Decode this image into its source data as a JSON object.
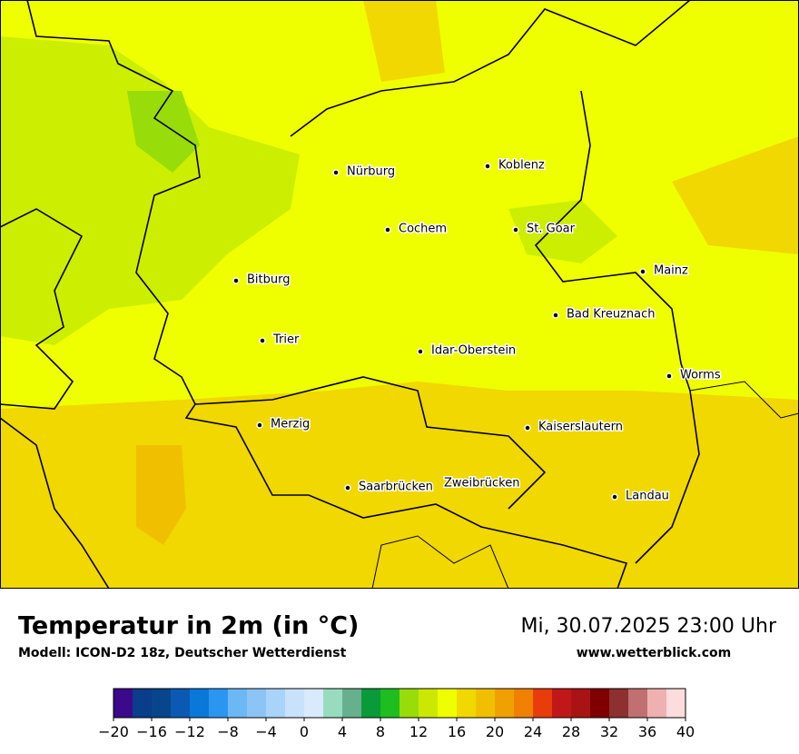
{
  "map": {
    "cities": [
      "Nürburg",
      "Koblenz",
      "Cochem",
      "St. Goar",
      "Mainz",
      "Bitburg",
      "Bad Kreuznach",
      "Trier",
      "Idar-Oberstein",
      "Worms",
      "Merzig",
      "Kaiserslautern",
      "Saarbrücken",
      "Zweibrücken",
      "Landau"
    ]
  },
  "footer": {
    "title": "Temperatur in 2m (in °C)",
    "model": "Modell: ICON-D2 18z, Deutscher Wetterdienst",
    "datetime": "Mi, 30.07.2025 23:00 Uhr",
    "website": "www.wetterblick.com"
  },
  "colorbar": {
    "lim": [
      -20,
      40
    ],
    "colors": [
      "#3b0a8a",
      "#0a3d8a",
      "#08468c",
      "#0a5ab4",
      "#0a78d8",
      "#2a96f0",
      "#6cb8f5",
      "#8cc4f5",
      "#a8d4fa",
      "#c8e2fc",
      "#d8eafc",
      "#98dcc0",
      "#66b090",
      "#0a9a3a",
      "#1ebe1e",
      "#98dc0a",
      "#cce800",
      "#f0ff00",
      "#f0d800",
      "#f0c000",
      "#f0a000",
      "#f08000",
      "#e83c0a",
      "#c01818",
      "#a81414",
      "#800000",
      "#8c3030",
      "#c07070",
      "#f0b0b0",
      "#fcdcdc"
    ],
    "ticks": [
      {
        "value": -20,
        "label": "−20"
      },
      {
        "value": -16,
        "label": "−16"
      },
      {
        "value": -12,
        "label": "−12"
      },
      {
        "value": -8,
        "label": "−8"
      },
      {
        "value": -4,
        "label": "−4"
      },
      0,
      4,
      8,
      12,
      16,
      20,
      24,
      28,
      32,
      36,
      40
    ]
  }
}
